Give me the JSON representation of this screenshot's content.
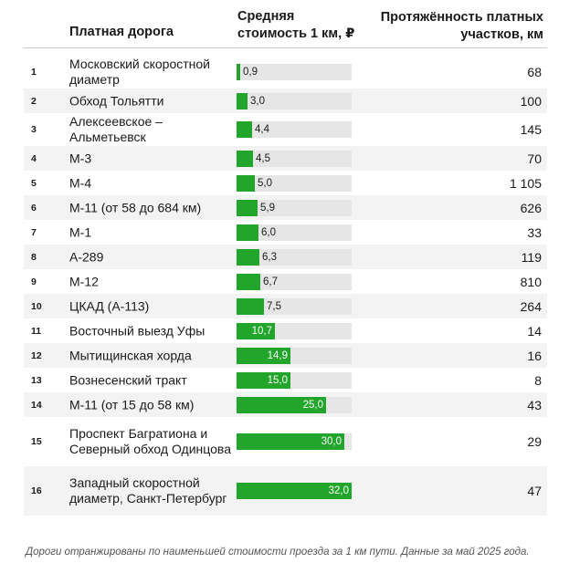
{
  "header": {
    "road": "Платная дорога",
    "cost_line1": "Средняя",
    "cost_line2": "стоимость 1 км, ₽",
    "length_line1": "Протяжённость платных",
    "length_line2": "участков, км"
  },
  "chart_data": {
    "type": "table",
    "columns": [
      "#",
      "Платная дорога",
      "Средняя стоимость 1 км, ₽",
      "Протяжённость платных участков, км"
    ],
    "value_max": 32.0,
    "accent_color": "#21a52a",
    "track_color": "#e6e6e6",
    "rows": [
      {
        "rank": "1",
        "name": "Московский скоростной диаметр",
        "cost": 0.9,
        "cost_label": "0,9",
        "length": "68"
      },
      {
        "rank": "2",
        "name": "Обход Тольятти",
        "cost": 3.0,
        "cost_label": "3,0",
        "length": "100"
      },
      {
        "rank": "3",
        "name": "Алексеевское – Альметьевск",
        "cost": 4.4,
        "cost_label": "4,4",
        "length": "145"
      },
      {
        "rank": "4",
        "name": "М-3",
        "cost": 4.5,
        "cost_label": "4,5",
        "length": "70"
      },
      {
        "rank": "5",
        "name": "М-4",
        "cost": 5.0,
        "cost_label": "5,0",
        "length": "1 105"
      },
      {
        "rank": "6",
        "name": "М-11 (от 58 до 684 км)",
        "cost": 5.9,
        "cost_label": "5,9",
        "length": "626"
      },
      {
        "rank": "7",
        "name": "М-1",
        "cost": 6.0,
        "cost_label": "6,0",
        "length": "33"
      },
      {
        "rank": "8",
        "name": "А-289",
        "cost": 6.3,
        "cost_label": "6,3",
        "length": "119"
      },
      {
        "rank": "9",
        "name": "М-12",
        "cost": 6.7,
        "cost_label": "6,7",
        "length": "810"
      },
      {
        "rank": "10",
        "name": "ЦКАД (А-113)",
        "cost": 7.5,
        "cost_label": "7,5",
        "length": "264"
      },
      {
        "rank": "11",
        "name": "Восточный выезд Уфы",
        "cost": 10.7,
        "cost_label": "10,7",
        "length": "14"
      },
      {
        "rank": "12",
        "name": "Мытищинская хорда",
        "cost": 14.9,
        "cost_label": "14,9",
        "length": "16"
      },
      {
        "rank": "13",
        "name": "Вознесенский тракт",
        "cost": 15.0,
        "cost_label": "15,0",
        "length": "8"
      },
      {
        "rank": "14",
        "name": "М-11 (от 15 до 58 км)",
        "cost": 25.0,
        "cost_label": "25,0",
        "length": "43"
      },
      {
        "rank": "15",
        "name": "Проспект Багратиона и Северный обход Одинцова",
        "cost": 30.0,
        "cost_label": "30,0",
        "length": "29"
      },
      {
        "rank": "16",
        "name": "Западный скоростной диаметр, Санкт-Петербург",
        "cost": 32.0,
        "cost_label": "32,0",
        "length": "47"
      }
    ]
  },
  "footnote": "Дороги отранжированы по наименьшей стоимости проезда за 1 км пути. Данные за май 2025 года."
}
